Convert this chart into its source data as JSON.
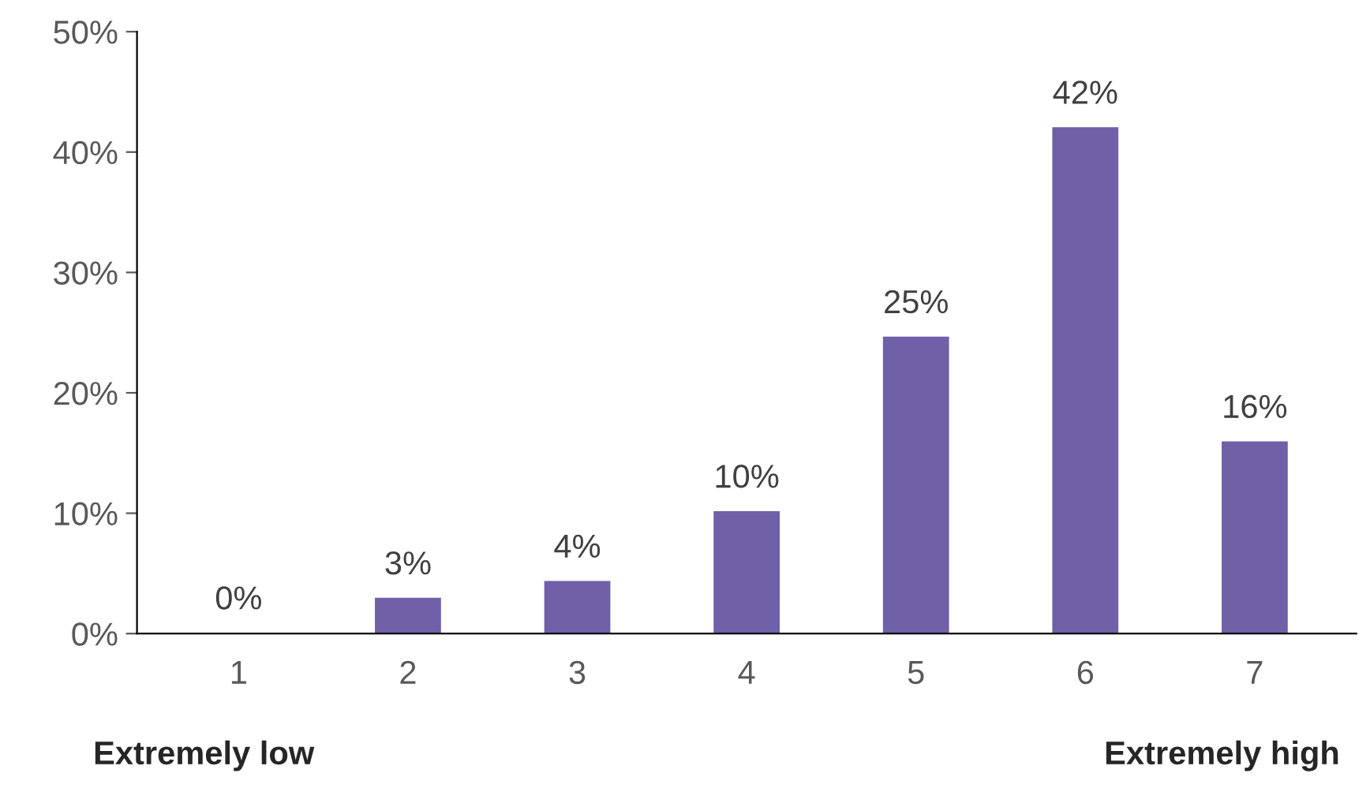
{
  "chart_data": {
    "type": "bar",
    "categories": [
      "1",
      "2",
      "3",
      "4",
      "5",
      "6",
      "7"
    ],
    "values": [
      0,
      2.9,
      4.3,
      10.1,
      24.6,
      42.0,
      15.9
    ],
    "value_labels": [
      "0%",
      "3%",
      "4%",
      "10%",
      "25%",
      "42%",
      "16%"
    ],
    "color": "#7060a8",
    "ylim": [
      0,
      50
    ],
    "yticks": [
      {
        "value": 0,
        "label": "0%"
      },
      {
        "value": 10,
        "label": "10%"
      },
      {
        "value": 20,
        "label": "20%"
      },
      {
        "value": 30,
        "label": "30%"
      },
      {
        "value": 40,
        "label": "40%"
      },
      {
        "value": 50,
        "label": "50%"
      }
    ],
    "grid": false,
    "legend": false,
    "annotations": [
      "Extremely low",
      "Extremely high"
    ]
  }
}
